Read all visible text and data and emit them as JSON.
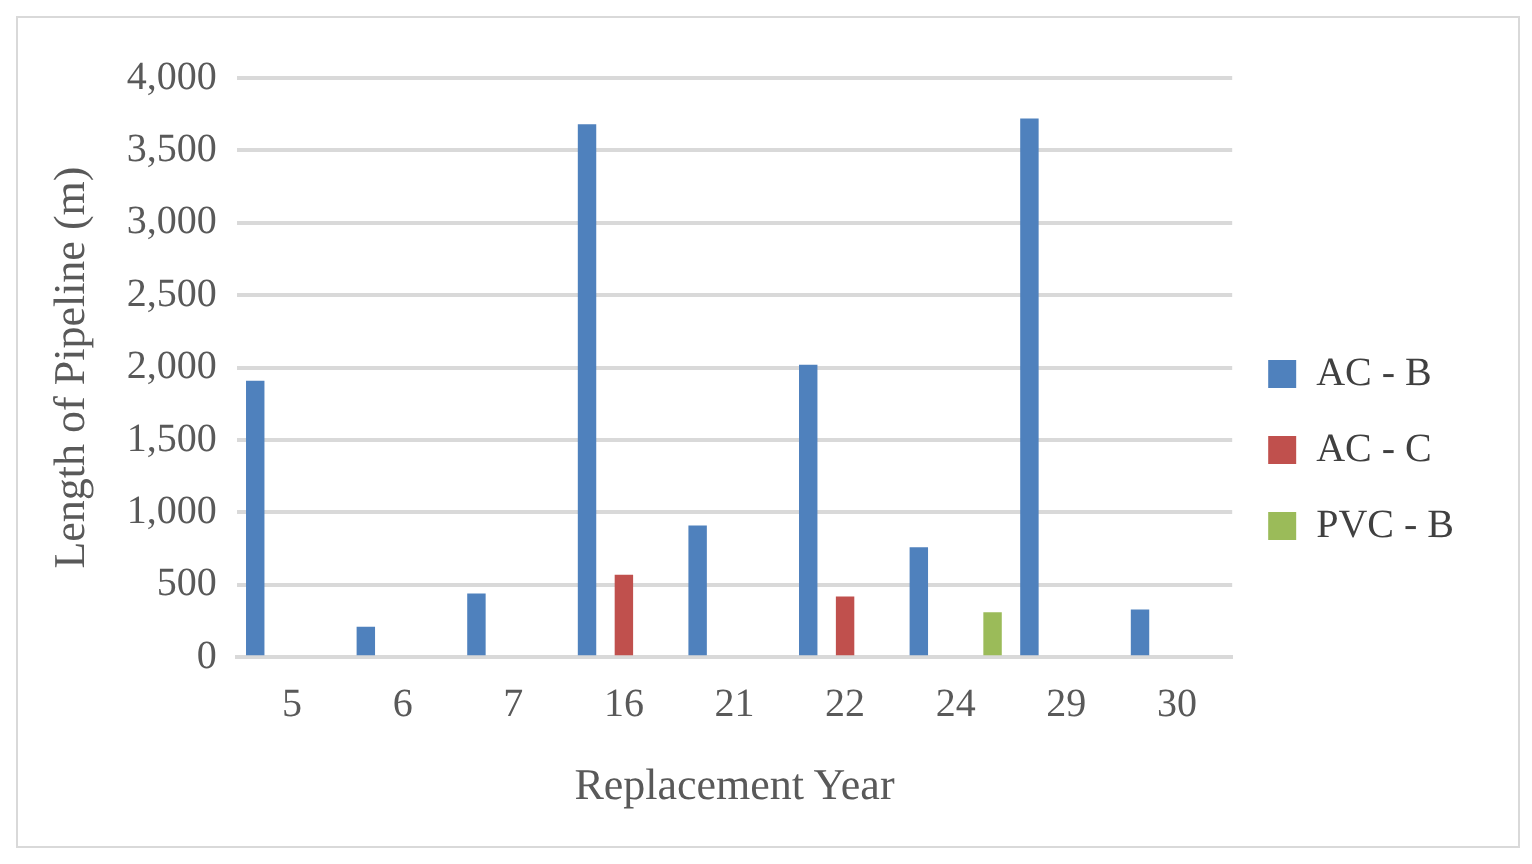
{
  "chart_data": {
    "type": "bar",
    "xlabel": "Replacement Year",
    "ylabel": "Length of Pipeline (m)",
    "categories": [
      "5",
      "6",
      "7",
      "16",
      "21",
      "22",
      "24",
      "29",
      "30"
    ],
    "series": [
      {
        "name": "AC - B",
        "color": "#4f81bd",
        "values": [
          1910,
          210,
          440,
          3680,
          910,
          2020,
          760,
          3720,
          330
        ]
      },
      {
        "name": "AC - C",
        "color": "#c0504d",
        "values": [
          null,
          null,
          null,
          570,
          null,
          420,
          null,
          null,
          null
        ]
      },
      {
        "name": "PVC - B",
        "color": "#9bbb59",
        "values": [
          null,
          null,
          null,
          null,
          null,
          null,
          310,
          null,
          null
        ]
      }
    ],
    "ylim": [
      0,
      4000
    ],
    "yticks": [
      {
        "value": 0,
        "label": "0"
      },
      {
        "value": 500,
        "label": "500"
      },
      {
        "value": 1000,
        "label": "1,000"
      },
      {
        "value": 1500,
        "label": "1,500"
      },
      {
        "value": 2000,
        "label": "2,000"
      },
      {
        "value": 2500,
        "label": "2,500"
      },
      {
        "value": 3000,
        "label": "3,000"
      },
      {
        "value": 3500,
        "label": "3,500"
      },
      {
        "value": 4000,
        "label": "4,000"
      }
    ],
    "grid": "y",
    "legend": "right"
  }
}
